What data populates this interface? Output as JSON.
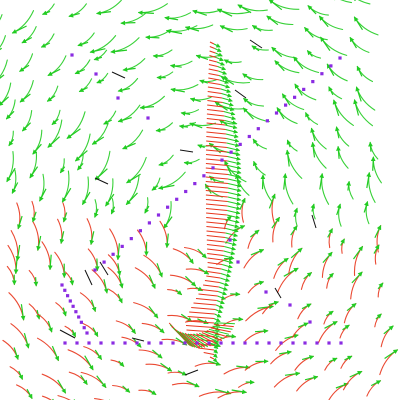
{
  "figure": {
    "background": "#ffffff",
    "colors": {
      "streak_tail": "#e8351c",
      "streak_mid": "#e0a020",
      "streak_head": "#22cc22",
      "marker": "#8a2be2",
      "dark_tick": "#111111"
    },
    "vortex_sense": "counter-clockwise",
    "legend": "none",
    "axes": "hidden",
    "grid": false,
    "elements": [
      "swirling-flow-streaks",
      "purple-marker-paths",
      "helical-ribbon",
      "dark-tick-marks"
    ]
  }
}
